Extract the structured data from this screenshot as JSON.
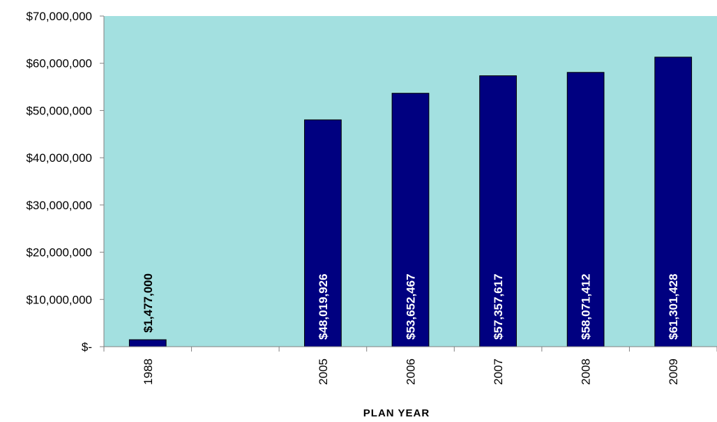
{
  "chart_data": {
    "type": "bar",
    "title": "",
    "xlabel": "PLAN YEAR",
    "ylabel": "",
    "categories": [
      "1988",
      "",
      "2005",
      "2006",
      "2007",
      "2008",
      "2009"
    ],
    "values": [
      1477000,
      null,
      48019926,
      53652467,
      57357617,
      58071412,
      61301428
    ],
    "value_labels": [
      "$1,477,000",
      "",
      "$48,019,926",
      "$53,652,467",
      "$57,357,617",
      "$58,071,412",
      "$61,301,428"
    ],
    "ylim": [
      0,
      70000000
    ],
    "yticks": [
      0,
      10000000,
      20000000,
      30000000,
      40000000,
      50000000,
      60000000,
      70000000
    ],
    "ytick_labels": [
      "$-",
      "$10,000,000",
      "$20,000,000",
      "$30,000,000",
      "$40,000,000",
      "$50,000,000",
      "$60,000,000",
      "$70,000,000"
    ],
    "grid": false,
    "legend": "none",
    "colors": {
      "plot_background": "#a3e0e0",
      "bar_fill": "#000080",
      "bar_stroke": "#000000",
      "label_inside": "#ffffff",
      "label_outside": "#000000"
    }
  }
}
